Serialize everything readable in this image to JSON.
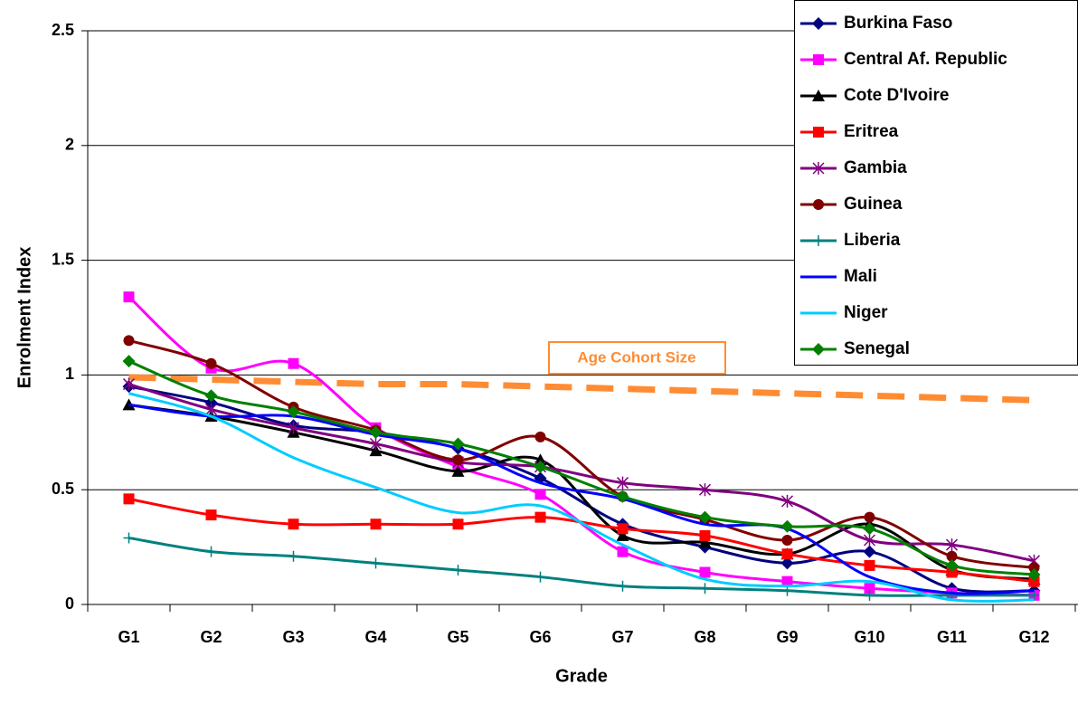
{
  "chart_data": {
    "type": "line",
    "y_label": "Enrolment Index",
    "x_label": "Grade",
    "categories": [
      "G1",
      "G2",
      "G3",
      "G4",
      "G5",
      "G6",
      "G7",
      "G8",
      "G9",
      "G10",
      "G11",
      "G12"
    ],
    "ylim": [
      0,
      2.5
    ],
    "yticks": [
      0,
      0.5,
      1,
      1.5,
      2,
      2.5
    ],
    "grid": true,
    "legend": "top-right",
    "series": [
      {
        "name": "Burkina Faso",
        "color": "#000080",
        "marker": "diamond",
        "values": [
          0.95,
          0.88,
          0.78,
          0.75,
          0.68,
          0.55,
          0.35,
          0.25,
          0.18,
          0.23,
          0.07,
          0.06
        ]
      },
      {
        "name": "Central Af. Republic",
        "color": "#ff00ff",
        "marker": "square",
        "values": [
          1.34,
          1.03,
          1.05,
          0.77,
          0.6,
          0.48,
          0.23,
          0.14,
          0.1,
          0.07,
          0.05,
          0.04
        ]
      },
      {
        "name": "Cote D'Ivoire",
        "color": "#000000",
        "marker": "triangle",
        "values": [
          0.87,
          0.82,
          0.75,
          0.67,
          0.58,
          0.63,
          0.3,
          0.27,
          0.22,
          0.35,
          0.15,
          0.11
        ]
      },
      {
        "name": "Eritrea",
        "color": "#ff0000",
        "marker": "square",
        "values": [
          0.46,
          0.39,
          0.35,
          0.35,
          0.35,
          0.38,
          0.33,
          0.3,
          0.22,
          0.17,
          0.14,
          0.1
        ]
      },
      {
        "name": "Gambia",
        "color": "#800080",
        "marker": "star",
        "values": [
          0.96,
          0.85,
          0.77,
          0.7,
          0.62,
          0.6,
          0.53,
          0.5,
          0.45,
          0.28,
          0.26,
          0.19
        ]
      },
      {
        "name": "Guinea",
        "color": "#800000",
        "marker": "circle",
        "values": [
          1.15,
          1.05,
          0.86,
          0.76,
          0.63,
          0.73,
          0.47,
          0.37,
          0.28,
          0.38,
          0.21,
          0.16
        ]
      },
      {
        "name": "Liberia",
        "color": "#008080",
        "marker": "plus",
        "values": [
          0.29,
          0.23,
          0.21,
          0.18,
          0.15,
          0.12,
          0.08,
          0.07,
          0.06,
          0.04,
          0.04,
          0.04
        ]
      },
      {
        "name": "Mali",
        "color": "#0000ff",
        "marker": "none",
        "values": [
          0.87,
          0.82,
          0.82,
          0.74,
          0.68,
          0.53,
          0.46,
          0.35,
          0.33,
          0.12,
          0.05,
          0.06
        ]
      },
      {
        "name": "Niger",
        "color": "#00ccff",
        "marker": "none",
        "values": [
          0.92,
          0.82,
          0.64,
          0.51,
          0.4,
          0.43,
          0.26,
          0.11,
          0.08,
          0.1,
          0.02,
          0.02
        ]
      },
      {
        "name": "Senegal",
        "color": "#008000",
        "marker": "diamond",
        "values": [
          1.06,
          0.91,
          0.84,
          0.75,
          0.7,
          0.6,
          0.47,
          0.38,
          0.34,
          0.33,
          0.17,
          0.13
        ]
      }
    ],
    "reference": {
      "label": "Age Cohort Size",
      "color": "#ff8c33",
      "values": [
        0.99,
        0.98,
        0.97,
        0.96,
        0.96,
        0.95,
        0.94,
        0.93,
        0.92,
        0.91,
        0.9,
        0.89
      ]
    }
  }
}
